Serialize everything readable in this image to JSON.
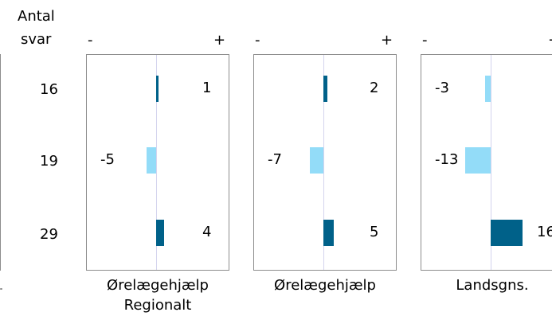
{
  "colors": {
    "positive": "#006189",
    "negative": "#93dcf8",
    "frame": "#8c8c8c",
    "zero_line": "#d4d4ee"
  },
  "header": {
    "count_title_line1": "Antal",
    "count_title_line2": "svar"
  },
  "row_counts": [
    "16",
    "19",
    "29"
  ],
  "chart_data": [
    {
      "type": "bar",
      "orientation": "horizontal",
      "title": "Ørelægehjælp Regionalt",
      "title_line1": "Ørelægehjælp",
      "title_line2": "Regionalt",
      "sign_negative": "-",
      "sign_positive": "+",
      "values": [
        1,
        -5,
        4
      ],
      "xlim": [
        -20,
        20
      ],
      "grid": false
    },
    {
      "type": "bar",
      "orientation": "horizontal",
      "title": "Ørelægehjælp",
      "title_line1": "Ørelægehjælp",
      "title_line2": "",
      "sign_negative": "-",
      "sign_positive": "+",
      "values": [
        2,
        -7,
        5
      ],
      "xlim": [
        -20,
        20
      ],
      "grid": false
    },
    {
      "type": "bar",
      "orientation": "horizontal",
      "title": "Landsgns.",
      "title_line1": "Landsgns.",
      "title_line2": "",
      "sign_negative": "-",
      "sign_positive": "+",
      "values": [
        -3,
        -13,
        16
      ],
      "xlim": [
        -20,
        20
      ],
      "grid": false
    }
  ]
}
